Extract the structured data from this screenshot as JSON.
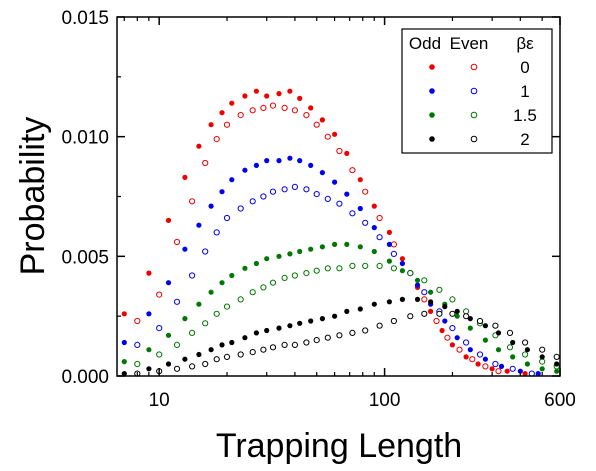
{
  "chart_data": {
    "type": "scatter",
    "xlabel": "Trapping Length",
    "ylabel": "Probability",
    "x_scale": "log",
    "xlim": [
      6.5,
      600
    ],
    "ylim": [
      0,
      0.015
    ],
    "x_ticks": [
      {
        "value": 10,
        "label": "10"
      },
      {
        "value": 100,
        "label": "100"
      },
      {
        "value": 600,
        "label": "600"
      }
    ],
    "y_ticks": [
      {
        "value": 0.0,
        "label": "0.000"
      },
      {
        "value": 0.005,
        "label": "0.005"
      },
      {
        "value": 0.01,
        "label": "0.010"
      },
      {
        "value": 0.015,
        "label": "0.015"
      }
    ],
    "legend": {
      "position": "top-right",
      "headers": [
        "Odd",
        "Even",
        "βε"
      ],
      "rows": [
        {
          "value": "0",
          "color": "#ee0000"
        },
        {
          "value": "1",
          "color": "#0000ee"
        },
        {
          "value": "1.5",
          "color": "#007700"
        },
        {
          "value": "2",
          "color": "#000000"
        }
      ]
    },
    "series": [
      {
        "parity": "odd",
        "be": "0",
        "color": "#ee0000",
        "marker": "filled",
        "points": [
          [
            7,
            0.0026
          ],
          [
            9,
            0.0043
          ],
          [
            11,
            0.0065
          ],
          [
            13,
            0.0083
          ],
          [
            15,
            0.0096
          ],
          [
            17,
            0.0105
          ],
          [
            19,
            0.011
          ],
          [
            21,
            0.0114
          ],
          [
            24,
            0.0117
          ],
          [
            27,
            0.0119
          ],
          [
            30,
            0.0117
          ],
          [
            34,
            0.0118
          ],
          [
            38,
            0.0119
          ],
          [
            42,
            0.0116
          ],
          [
            47,
            0.0112
          ],
          [
            53,
            0.0107
          ],
          [
            60,
            0.0101
          ],
          [
            68,
            0.0093
          ],
          [
            78,
            0.0082
          ],
          [
            90,
            0.0071
          ],
          [
            105,
            0.006
          ],
          [
            120,
            0.0049
          ],
          [
            140,
            0.0037
          ],
          [
            160,
            0.0027
          ],
          [
            180,
            0.0019
          ],
          [
            200,
            0.0013
          ],
          [
            230,
            0.0008
          ],
          [
            260,
            0.0005
          ],
          [
            300,
            0.0003
          ],
          [
            350,
            0.0002
          ],
          [
            420,
            0.0001
          ]
        ]
      },
      {
        "parity": "even",
        "be": "0",
        "color": "#ee0000",
        "marker": "open",
        "points": [
          [
            8,
            0.0023
          ],
          [
            10,
            0.0034
          ],
          [
            12,
            0.0056
          ],
          [
            14,
            0.0073
          ],
          [
            16,
            0.0089
          ],
          [
            18,
            0.0099
          ],
          [
            20,
            0.0105
          ],
          [
            23,
            0.0109
          ],
          [
            26,
            0.0111
          ],
          [
            29,
            0.0112
          ],
          [
            32,
            0.0113
          ],
          [
            36,
            0.0112
          ],
          [
            40,
            0.0111
          ],
          [
            45,
            0.0109
          ],
          [
            50,
            0.0105
          ],
          [
            56,
            0.01
          ],
          [
            63,
            0.0094
          ],
          [
            72,
            0.0086
          ],
          [
            82,
            0.0077
          ],
          [
            95,
            0.0066
          ],
          [
            110,
            0.0055
          ],
          [
            130,
            0.0043
          ],
          [
            150,
            0.0032
          ],
          [
            170,
            0.0023
          ],
          [
            190,
            0.0016
          ],
          [
            215,
            0.0011
          ],
          [
            245,
            0.0007
          ],
          [
            280,
            0.0004
          ],
          [
            320,
            0.0002
          ]
        ]
      },
      {
        "parity": "odd",
        "be": "1",
        "color": "#0000ee",
        "marker": "filled",
        "points": [
          [
            7,
            0.0014
          ],
          [
            9,
            0.0026
          ],
          [
            11,
            0.0039
          ],
          [
            13,
            0.0053
          ],
          [
            15,
            0.0063
          ],
          [
            17,
            0.0071
          ],
          [
            19,
            0.0077
          ],
          [
            21,
            0.0082
          ],
          [
            24,
            0.0086
          ],
          [
            27,
            0.0088
          ],
          [
            30,
            0.009
          ],
          [
            34,
            0.009
          ],
          [
            38,
            0.0091
          ],
          [
            42,
            0.009
          ],
          [
            47,
            0.0088
          ],
          [
            53,
            0.0085
          ],
          [
            60,
            0.0081
          ],
          [
            68,
            0.0076
          ],
          [
            78,
            0.007
          ],
          [
            90,
            0.0062
          ],
          [
            105,
            0.0055
          ],
          [
            120,
            0.0047
          ],
          [
            140,
            0.0038
          ],
          [
            160,
            0.003
          ],
          [
            185,
            0.0023
          ],
          [
            210,
            0.0016
          ],
          [
            240,
            0.0011
          ],
          [
            280,
            0.0007
          ],
          [
            330,
            0.0004
          ],
          [
            400,
            0.0002
          ],
          [
            480,
            0.0001
          ]
        ]
      },
      {
        "parity": "even",
        "be": "1",
        "color": "#0000ee",
        "marker": "open",
        "points": [
          [
            8,
            0.0013
          ],
          [
            10,
            0.002
          ],
          [
            12,
            0.0031
          ],
          [
            14,
            0.0042
          ],
          [
            16,
            0.0052
          ],
          [
            18,
            0.006
          ],
          [
            20,
            0.0066
          ],
          [
            23,
            0.007
          ],
          [
            26,
            0.0073
          ],
          [
            29,
            0.0075
          ],
          [
            32,
            0.0077
          ],
          [
            36,
            0.0078
          ],
          [
            40,
            0.0079
          ],
          [
            45,
            0.0078
          ],
          [
            50,
            0.0076
          ],
          [
            56,
            0.0074
          ],
          [
            63,
            0.0072
          ],
          [
            72,
            0.0068
          ],
          [
            82,
            0.0064
          ],
          [
            95,
            0.0058
          ],
          [
            110,
            0.0051
          ],
          [
            130,
            0.0043
          ],
          [
            150,
            0.0035
          ],
          [
            175,
            0.0027
          ],
          [
            200,
            0.002
          ],
          [
            230,
            0.0014
          ],
          [
            265,
            0.0009
          ],
          [
            310,
            0.0005
          ],
          [
            370,
            0.0003
          ],
          [
            450,
            0.0001
          ]
        ]
      },
      {
        "parity": "odd",
        "be": "1.5",
        "color": "#007700",
        "marker": "filled",
        "points": [
          [
            7,
            0.0006
          ],
          [
            9,
            0.0011
          ],
          [
            11,
            0.0017
          ],
          [
            13,
            0.0024
          ],
          [
            15,
            0.003
          ],
          [
            17,
            0.0035
          ],
          [
            19,
            0.0039
          ],
          [
            21,
            0.0042
          ],
          [
            24,
            0.0045
          ],
          [
            27,
            0.0047
          ],
          [
            30,
            0.0049
          ],
          [
            34,
            0.005
          ],
          [
            38,
            0.0051
          ],
          [
            42,
            0.0052
          ],
          [
            47,
            0.0053
          ],
          [
            53,
            0.0054
          ],
          [
            60,
            0.0055
          ],
          [
            68,
            0.0055
          ],
          [
            78,
            0.0054
          ],
          [
            90,
            0.0052
          ],
          [
            105,
            0.0048
          ],
          [
            120,
            0.0044
          ],
          [
            140,
            0.004
          ],
          [
            160,
            0.0035
          ],
          [
            185,
            0.003
          ],
          [
            210,
            0.0025
          ],
          [
            240,
            0.002
          ],
          [
            280,
            0.0015
          ],
          [
            320,
            0.0011
          ],
          [
            370,
            0.0008
          ],
          [
            430,
            0.0005
          ],
          [
            500,
            0.0003
          ],
          [
            580,
            0.0002
          ]
        ]
      },
      {
        "parity": "even",
        "be": "1.5",
        "color": "#007700",
        "marker": "open",
        "points": [
          [
            8,
            0.0005
          ],
          [
            10,
            0.0009
          ],
          [
            12,
            0.0013
          ],
          [
            14,
            0.0018
          ],
          [
            16,
            0.0022
          ],
          [
            18,
            0.0026
          ],
          [
            20,
            0.0029
          ],
          [
            23,
            0.0032
          ],
          [
            26,
            0.0035
          ],
          [
            29,
            0.0037
          ],
          [
            32,
            0.0039
          ],
          [
            36,
            0.0041
          ],
          [
            40,
            0.0042
          ],
          [
            45,
            0.0043
          ],
          [
            50,
            0.0044
          ],
          [
            56,
            0.0045
          ],
          [
            63,
            0.0045
          ],
          [
            72,
            0.0046
          ],
          [
            82,
            0.0046
          ],
          [
            95,
            0.0046
          ],
          [
            110,
            0.0045
          ],
          [
            130,
            0.0043
          ],
          [
            150,
            0.004
          ],
          [
            175,
            0.0036
          ],
          [
            200,
            0.0032
          ],
          [
            230,
            0.0027
          ],
          [
            265,
            0.0022
          ],
          [
            310,
            0.0017
          ],
          [
            360,
            0.0012
          ],
          [
            420,
            0.0009
          ],
          [
            500,
            0.0006
          ],
          [
            580,
            0.0004
          ]
        ]
      },
      {
        "parity": "odd",
        "be": "2",
        "color": "#000000",
        "marker": "filled",
        "points": [
          [
            7,
            0.0001
          ],
          [
            9,
            0.0003
          ],
          [
            11,
            0.0005
          ],
          [
            13,
            0.0007
          ],
          [
            15,
            0.0009
          ],
          [
            17,
            0.0011
          ],
          [
            19,
            0.0013
          ],
          [
            21,
            0.0014
          ],
          [
            24,
            0.0016
          ],
          [
            27,
            0.0018
          ],
          [
            30,
            0.0019
          ],
          [
            34,
            0.002
          ],
          [
            38,
            0.0021
          ],
          [
            42,
            0.0022
          ],
          [
            47,
            0.0023
          ],
          [
            53,
            0.0024
          ],
          [
            60,
            0.0025
          ],
          [
            68,
            0.0027
          ],
          [
            78,
            0.0028
          ],
          [
            90,
            0.003
          ],
          [
            105,
            0.0031
          ],
          [
            120,
            0.0032
          ],
          [
            140,
            0.0032
          ],
          [
            160,
            0.0031
          ],
          [
            185,
            0.0029
          ],
          [
            210,
            0.0027
          ],
          [
            240,
            0.0024
          ],
          [
            280,
            0.0021
          ],
          [
            320,
            0.0018
          ],
          [
            370,
            0.0014
          ],
          [
            430,
            0.0011
          ],
          [
            500,
            0.0008
          ],
          [
            580,
            0.0005
          ]
        ]
      },
      {
        "parity": "even",
        "be": "2",
        "color": "#000000",
        "marker": "open",
        "points": [
          [
            8,
            0.0001
          ],
          [
            10,
            0.0002
          ],
          [
            12,
            0.0003
          ],
          [
            14,
            0.0004
          ],
          [
            16,
            0.0005
          ],
          [
            18,
            0.0007
          ],
          [
            20,
            0.0008
          ],
          [
            23,
            0.0009
          ],
          [
            26,
            0.001
          ],
          [
            29,
            0.0011
          ],
          [
            32,
            0.0012
          ],
          [
            36,
            0.0013
          ],
          [
            40,
            0.0013
          ],
          [
            45,
            0.0014
          ],
          [
            50,
            0.0015
          ],
          [
            56,
            0.0016
          ],
          [
            63,
            0.0017
          ],
          [
            72,
            0.0018
          ],
          [
            82,
            0.0019
          ],
          [
            95,
            0.0021
          ],
          [
            110,
            0.0023
          ],
          [
            130,
            0.0025
          ],
          [
            150,
            0.0026
          ],
          [
            175,
            0.0026
          ],
          [
            200,
            0.0026
          ],
          [
            230,
            0.0025
          ],
          [
            265,
            0.0023
          ],
          [
            310,
            0.0021
          ],
          [
            360,
            0.0018
          ],
          [
            420,
            0.0014
          ],
          [
            500,
            0.0011
          ],
          [
            580,
            0.0008
          ]
        ]
      }
    ]
  }
}
